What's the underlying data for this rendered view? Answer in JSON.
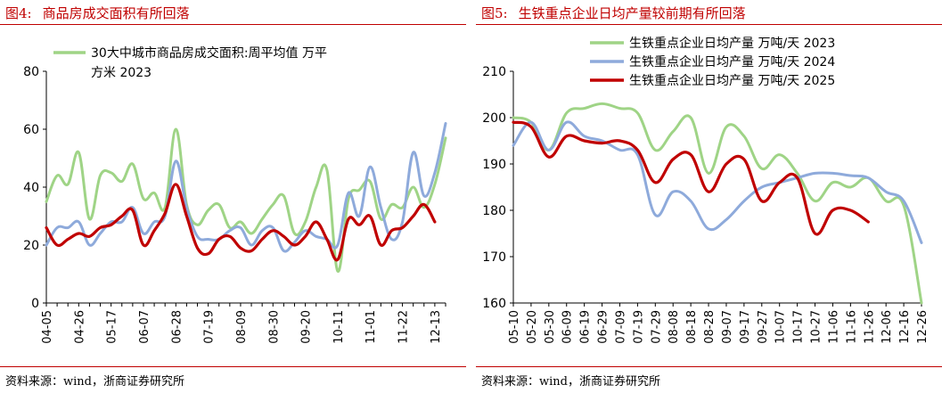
{
  "charts": [
    {
      "fig_no": "图4:",
      "title": "商品房成交面积有所回落",
      "source": "资料来源：wind，浙商证券研究所",
      "chart_data": {
        "type": "line",
        "x": [
          "04-05",
          "04-12",
          "04-19",
          "04-26",
          "05-03",
          "05-10",
          "05-17",
          "05-24",
          "05-31",
          "06-07",
          "06-14",
          "06-21",
          "06-28",
          "07-05",
          "07-12",
          "07-19",
          "07-26",
          "08-02",
          "08-09",
          "08-16",
          "08-23",
          "08-30",
          "09-06",
          "09-13",
          "09-20",
          "09-27",
          "10-04",
          "10-11",
          "10-18",
          "10-25",
          "11-01",
          "11-08",
          "11-15",
          "11-22",
          "11-29",
          "12-06",
          "12-13",
          "12-20"
        ],
        "xticks": [
          "04-05",
          "04-26",
          "05-17",
          "06-07",
          "06-28",
          "07-19",
          "08-09",
          "08-30",
          "09-20",
          "10-11",
          "11-01",
          "11-22",
          "12-13"
        ],
        "ylim": [
          0,
          80
        ],
        "yticks": [
          0,
          20,
          40,
          60,
          80
        ],
        "series": [
          {
            "name": "30大中城市商品房成交面积:周平均值 万平方米 2023",
            "color": "#9fd486",
            "values": [
              35,
              44,
              41,
              52,
              29,
              44,
              45,
              42,
              48,
              36,
              38,
              33,
              60,
              34,
              27,
              32,
              34,
              26,
              28,
              24,
              29,
              34,
              37,
              24,
              28,
              40,
              46,
              11,
              36,
              39,
              42,
              29,
              34,
              33,
              40,
              33,
              41,
              57
            ]
          },
          {
            "name": "2024",
            "color": "#8eaadb",
            "values": [
              20,
              26,
              26,
              28,
              20,
              24,
              28,
              28,
              33,
              24,
              28,
              30,
              49,
              33,
              23,
              22,
              22,
              25,
              26,
              20,
              25,
              26,
              18,
              21,
              25,
              23,
              22,
              20,
              38,
              30,
              47,
              33,
              22,
              28,
              52,
              37,
              45,
              62
            ]
          },
          {
            "name": "2025",
            "color": "#c00000",
            "values": [
              26,
              20,
              22,
              24,
              23,
              26,
              27,
              30,
              32,
              20,
              25,
              31,
              41,
              30,
              19,
              17,
              22,
              23,
              19,
              18,
              22,
              25,
              23,
              20,
              23,
              28,
              22,
              15,
              29,
              27,
              30,
              20,
              25,
              26,
              30,
              34,
              28,
              null
            ]
          }
        ]
      }
    },
    {
      "fig_no": "图5:",
      "title": "生铁重点企业日均产量较前期有所回落",
      "source": "资料来源：wind，浙商证券研究所",
      "chart_data": {
        "type": "line",
        "x": [
          "05-10",
          "05-20",
          "05-30",
          "06-09",
          "06-19",
          "06-29",
          "07-09",
          "07-19",
          "07-29",
          "08-08",
          "08-18",
          "08-28",
          "09-07",
          "09-17",
          "09-27",
          "10-07",
          "10-17",
          "10-27",
          "11-06",
          "11-16",
          "11-26",
          "12-06",
          "12-16",
          "12-26"
        ],
        "xticks": [
          "05-10",
          "05-20",
          "05-30",
          "06-09",
          "06-19",
          "06-29",
          "07-09",
          "07-19",
          "07-29",
          "08-08",
          "08-18",
          "08-28",
          "09-07",
          "09-17",
          "09-27",
          "10-07",
          "10-17",
          "10-27",
          "11-06",
          "11-16",
          "11-26",
          "12-06",
          "12-16",
          "12-26"
        ],
        "ylim": [
          160,
          210
        ],
        "yticks": [
          160,
          170,
          180,
          190,
          200,
          210
        ],
        "series": [
          {
            "name": "生铁重点企业日均产量 万吨/天 2023",
            "color": "#9fd486",
            "values": [
              200,
              199,
              193,
              201,
              202,
              203,
              202,
              201,
              193,
              197,
              200,
              188,
              198,
              196,
              189,
              192,
              188,
              182,
              186,
              185,
              187,
              182,
              181,
              160
            ]
          },
          {
            "name": "生铁重点企业日均产量 万吨/天 2024",
            "color": "#8eaadb",
            "values": [
              194,
              199,
              193,
              199,
              196,
              195,
              193,
              192,
              179,
              184,
              182,
              176,
              178,
              182,
              185,
              186,
              187,
              188,
              188,
              187.5,
              187,
              184,
              182,
              173
            ]
          },
          {
            "name": "生铁重点企业日均产量 万吨/天 2025",
            "color": "#c00000",
            "values": [
              199,
              198,
              191.5,
              196,
              195,
              194.5,
              195,
              193,
              186,
              191,
              192,
              184,
              190,
              191,
              182,
              186,
              187,
              175,
              180,
              180,
              177.5,
              null,
              null,
              null
            ]
          }
        ]
      }
    }
  ]
}
